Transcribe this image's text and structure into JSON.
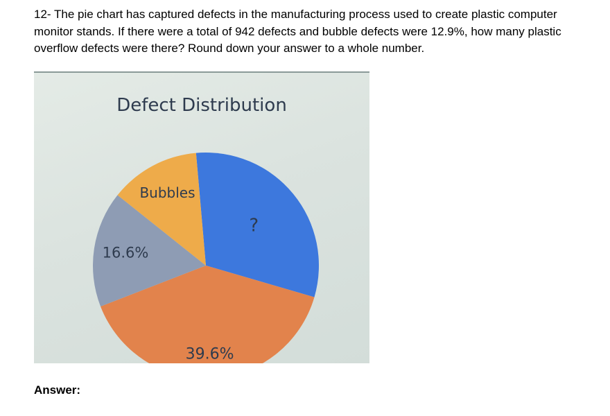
{
  "question": {
    "text": "12- The pie chart has captured defects in the manufacturing process used to create plastic computer monitor stands. If there were a total of 942 defects and bubble defects were 12.9%, how many plastic overflow defects were there? Round down your answer to a whole number."
  },
  "answer": {
    "label": "Answer:"
  },
  "colors": {
    "blue": "#3d78dd",
    "orange": "#e2834c",
    "grey": "#8e9cb4",
    "yellow": "#eeab4a",
    "label_text": "#2e3b4e"
  },
  "chart_data": {
    "type": "pie",
    "title": "Defect Distribution",
    "slices": [
      {
        "label": "?",
        "value": 30.9,
        "color": "#3d78dd"
      },
      {
        "label": "39.6%",
        "value": 39.6,
        "color": "#e2834c"
      },
      {
        "label": "16.6%",
        "value": 16.6,
        "color": "#8e9cb4"
      },
      {
        "label": "Bubbles",
        "value": 12.9,
        "color": "#eeab4a"
      }
    ]
  }
}
